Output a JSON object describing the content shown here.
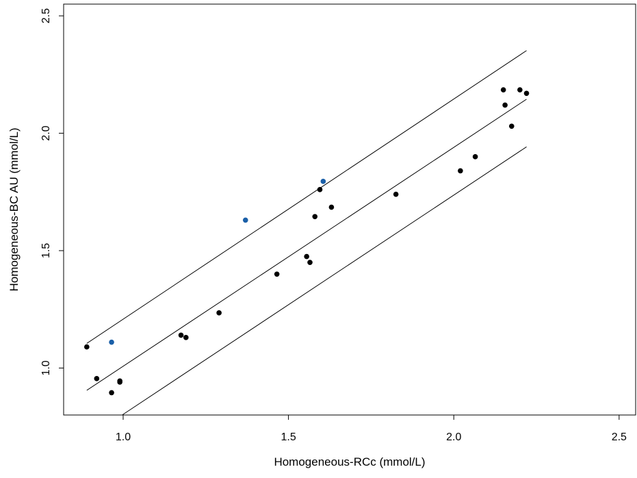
{
  "chart_data": {
    "type": "scatter",
    "title": "",
    "xlabel": "Homogeneous-RCc (mmol/L)",
    "ylabel": "Homogeneous-BC AU (mmol/L)",
    "xlim": [
      0.82,
      2.55
    ],
    "ylim": [
      0.8,
      2.55
    ],
    "x_ticks": [
      1.0,
      1.5,
      2.0,
      2.5
    ],
    "x_tick_labels": [
      "1.0",
      "1.5",
      "2.0",
      "2.5"
    ],
    "y_ticks": [
      1.0,
      1.5,
      2.0,
      2.5
    ],
    "y_tick_labels": [
      "1.0",
      "1.5",
      "2.0",
      "2.5"
    ],
    "grid": false,
    "legend": "none",
    "colors": {
      "inside": "#000000",
      "outside": "#1a5fa8",
      "line": "#000000"
    },
    "series": [
      {
        "group": "inside",
        "points": [
          [
            0.89,
            1.09
          ],
          [
            0.92,
            0.955
          ],
          [
            0.965,
            0.895
          ],
          [
            0.99,
            0.94
          ],
          [
            0.99,
            0.945
          ],
          [
            1.175,
            1.14
          ],
          [
            1.19,
            1.13
          ],
          [
            1.29,
            1.235
          ],
          [
            1.465,
            1.4
          ],
          [
            1.555,
            1.475
          ],
          [
            1.565,
            1.45
          ],
          [
            1.58,
            1.645
          ],
          [
            1.595,
            1.76
          ],
          [
            1.63,
            1.685
          ],
          [
            1.825,
            1.74
          ],
          [
            2.02,
            1.84
          ],
          [
            2.065,
            1.9
          ],
          [
            2.15,
            2.185
          ],
          [
            2.155,
            2.12
          ],
          [
            2.175,
            2.03
          ],
          [
            2.2,
            2.185
          ],
          [
            2.22,
            2.17
          ]
        ]
      },
      {
        "group": "outside",
        "points": [
          [
            0.965,
            1.11
          ],
          [
            1.37,
            1.63
          ],
          [
            1.605,
            1.795
          ]
        ]
      }
    ],
    "lines": [
      {
        "x": [
          0.89,
          2.22
        ],
        "y": [
          1.105,
          2.352
        ]
      },
      {
        "x": [
          0.89,
          2.22
        ],
        "y": [
          0.905,
          2.145
        ]
      },
      {
        "x": [
          0.89,
          2.22
        ],
        "y": [
          0.7,
          1.942
        ]
      }
    ]
  }
}
